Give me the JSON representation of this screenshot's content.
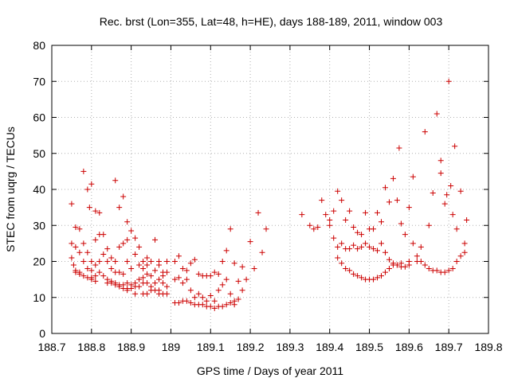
{
  "chart_data": {
    "type": "scatter",
    "title": "Rec. brst (Lon=355, Lat=48, h=HE), days 188-189, 2011, window 003",
    "xlabel": "GPS time / Days of year 2011",
    "ylabel": "STEC from uqrg / TECUs",
    "xlim": [
      188.7,
      189.8
    ],
    "ylim": [
      0,
      80
    ],
    "xticks": [
      188.7,
      188.8,
      188.9,
      189.0,
      189.1,
      189.2,
      189.3,
      189.4,
      189.5,
      189.6,
      189.7,
      189.8
    ],
    "xtick_labels": [
      "188.7",
      "188.8",
      "188.9",
      "189",
      "189.1",
      "189.2",
      "189.3",
      "189.4",
      "189.5",
      "189.6",
      "189.7",
      "189.8"
    ],
    "yticks": [
      0,
      10,
      20,
      30,
      40,
      50,
      60,
      70,
      80
    ],
    "ytick_labels": [
      "0",
      "10",
      "20",
      "30",
      "40",
      "50",
      "60",
      "70",
      "80"
    ],
    "grid": true,
    "marker": "+",
    "color": "#cc0000",
    "series": [
      {
        "name": "STEC",
        "points": [
          [
            188.75,
            36
          ],
          [
            188.76,
            29.5
          ],
          [
            188.77,
            29
          ],
          [
            188.78,
            45
          ],
          [
            188.79,
            40
          ],
          [
            188.795,
            35
          ],
          [
            188.8,
            41.5
          ],
          [
            188.81,
            34
          ],
          [
            188.82,
            33.5
          ],
          [
            188.86,
            42.5
          ],
          [
            188.87,
            35
          ],
          [
            188.88,
            38
          ],
          [
            188.89,
            31
          ],
          [
            188.75,
            25
          ],
          [
            188.76,
            24
          ],
          [
            188.77,
            22.5
          ],
          [
            188.78,
            25
          ],
          [
            188.79,
            22.5
          ],
          [
            188.8,
            20
          ],
          [
            188.81,
            26
          ],
          [
            188.82,
            27.5
          ],
          [
            188.83,
            27.5
          ],
          [
            188.84,
            23.5
          ],
          [
            188.85,
            21
          ],
          [
            188.86,
            20
          ],
          [
            188.87,
            24
          ],
          [
            188.88,
            25
          ],
          [
            188.89,
            26
          ],
          [
            188.9,
            28.5
          ],
          [
            188.91,
            26.5
          ],
          [
            188.92,
            24
          ],
          [
            188.93,
            20
          ],
          [
            188.94,
            21
          ],
          [
            188.95,
            20
          ],
          [
            188.96,
            26
          ],
          [
            188.97,
            20
          ],
          [
            188.98,
            17
          ],
          [
            188.99,
            20
          ],
          [
            188.75,
            21
          ],
          [
            188.755,
            19
          ],
          [
            188.76,
            17.5
          ],
          [
            188.77,
            17
          ],
          [
            188.78,
            20
          ],
          [
            188.79,
            18
          ],
          [
            188.8,
            17.5
          ],
          [
            188.81,
            19
          ],
          [
            188.82,
            20
          ],
          [
            188.83,
            22
          ],
          [
            188.84,
            20
          ],
          [
            188.85,
            18
          ],
          [
            188.86,
            17
          ],
          [
            188.87,
            17
          ],
          [
            188.88,
            16.5
          ],
          [
            188.89,
            20
          ],
          [
            188.9,
            18
          ],
          [
            188.91,
            22
          ],
          [
            188.92,
            19
          ],
          [
            188.93,
            18
          ],
          [
            188.94,
            19
          ],
          [
            188.95,
            16
          ],
          [
            188.96,
            17.5
          ],
          [
            188.97,
            19
          ],
          [
            188.98,
            16
          ],
          [
            188.99,
            17
          ],
          [
            188.76,
            17
          ],
          [
            188.77,
            16.5
          ],
          [
            188.78,
            16
          ],
          [
            188.79,
            15.5
          ],
          [
            188.8,
            15.5
          ],
          [
            188.81,
            16
          ],
          [
            188.82,
            17
          ],
          [
            188.83,
            16
          ],
          [
            188.84,
            15
          ],
          [
            188.85,
            14.5
          ],
          [
            188.86,
            14
          ],
          [
            188.87,
            13.5
          ],
          [
            188.88,
            13.5
          ],
          [
            188.89,
            14
          ],
          [
            188.9,
            13.5
          ],
          [
            188.91,
            14
          ],
          [
            188.92,
            15
          ],
          [
            188.93,
            15.5
          ],
          [
            188.94,
            16.5
          ],
          [
            188.95,
            13
          ],
          [
            188.96,
            14
          ],
          [
            188.97,
            15
          ],
          [
            188.98,
            14
          ],
          [
            188.99,
            13
          ],
          [
            188.8,
            15
          ],
          [
            188.81,
            14.5
          ],
          [
            188.84,
            14
          ],
          [
            188.85,
            14
          ],
          [
            188.86,
            13.5
          ],
          [
            188.87,
            13
          ],
          [
            188.88,
            12.5
          ],
          [
            188.89,
            12.5
          ],
          [
            188.9,
            12.5
          ],
          [
            188.91,
            13
          ],
          [
            188.92,
            13
          ],
          [
            188.93,
            14
          ],
          [
            188.94,
            14
          ],
          [
            188.95,
            12
          ],
          [
            188.96,
            12
          ],
          [
            188.97,
            11
          ],
          [
            188.98,
            11
          ],
          [
            188.99,
            11
          ],
          [
            188.89,
            12
          ],
          [
            188.91,
            11
          ],
          [
            188.93,
            11
          ],
          [
            188.94,
            11
          ],
          [
            188.97,
            12
          ],
          [
            189.01,
            20
          ],
          [
            189.02,
            21.5
          ],
          [
            189.03,
            18
          ],
          [
            189.04,
            17.5
          ],
          [
            189.05,
            19.5
          ],
          [
            189.06,
            20.5
          ],
          [
            189.07,
            16.5
          ],
          [
            189.08,
            16
          ],
          [
            189.09,
            16
          ],
          [
            189.1,
            16
          ],
          [
            189.11,
            17
          ],
          [
            189.12,
            16.5
          ],
          [
            189.13,
            20
          ],
          [
            189.14,
            23
          ],
          [
            189.15,
            29
          ],
          [
            189.16,
            19.5
          ],
          [
            189.17,
            14.5
          ],
          [
            189.18,
            18.5
          ],
          [
            189.19,
            15
          ],
          [
            189.2,
            25.5
          ],
          [
            189.21,
            18
          ],
          [
            189.22,
            33.5
          ],
          [
            189.23,
            22.5
          ],
          [
            189.24,
            29
          ],
          [
            189.01,
            15
          ],
          [
            189.02,
            15.5
          ],
          [
            189.03,
            14
          ],
          [
            189.04,
            15
          ],
          [
            189.05,
            12
          ],
          [
            189.06,
            10
          ],
          [
            189.07,
            11
          ],
          [
            189.08,
            10
          ],
          [
            189.09,
            9
          ],
          [
            189.1,
            10.5
          ],
          [
            189.11,
            9
          ],
          [
            189.12,
            12
          ],
          [
            189.13,
            13.5
          ],
          [
            189.14,
            15
          ],
          [
            189.15,
            11
          ],
          [
            189.16,
            9
          ],
          [
            189.17,
            9.5
          ],
          [
            189.18,
            12
          ],
          [
            189.01,
            8.5
          ],
          [
            189.02,
            8.5
          ],
          [
            189.03,
            9
          ],
          [
            189.04,
            9
          ],
          [
            189.05,
            8.5
          ],
          [
            189.06,
            8
          ],
          [
            189.07,
            8
          ],
          [
            189.08,
            8
          ],
          [
            189.09,
            7.5
          ],
          [
            189.1,
            7.5
          ],
          [
            189.11,
            7
          ],
          [
            189.12,
            7.5
          ],
          [
            189.13,
            7.5
          ],
          [
            189.14,
            8
          ],
          [
            189.15,
            8.5
          ],
          [
            189.16,
            8
          ],
          [
            189.33,
            33
          ],
          [
            189.35,
            30
          ],
          [
            189.36,
            29
          ],
          [
            189.37,
            29.5
          ],
          [
            189.38,
            37
          ],
          [
            189.39,
            33
          ],
          [
            189.4,
            30
          ],
          [
            189.41,
            34
          ],
          [
            189.42,
            39.5
          ],
          [
            189.43,
            37
          ],
          [
            189.44,
            31.5
          ],
          [
            189.45,
            34
          ],
          [
            189.46,
            29.5
          ],
          [
            189.47,
            28
          ],
          [
            189.48,
            27.5
          ],
          [
            189.49,
            33.5
          ],
          [
            189.5,
            29
          ],
          [
            189.51,
            29
          ],
          [
            189.52,
            33.5
          ],
          [
            189.53,
            31
          ],
          [
            189.54,
            40.5
          ],
          [
            189.55,
            36.5
          ],
          [
            189.56,
            43
          ],
          [
            189.57,
            37
          ],
          [
            189.575,
            51.5
          ],
          [
            189.58,
            30.5
          ],
          [
            189.6,
            35
          ],
          [
            189.61,
            43.5
          ],
          [
            189.64,
            56
          ],
          [
            189.65,
            30
          ],
          [
            189.66,
            39
          ],
          [
            189.67,
            61
          ],
          [
            189.68,
            44.5
          ],
          [
            189.68,
            48
          ],
          [
            189.69,
            36
          ],
          [
            189.695,
            38.5
          ],
          [
            189.7,
            70
          ],
          [
            189.705,
            41
          ],
          [
            189.71,
            33
          ],
          [
            189.715,
            52
          ],
          [
            189.72,
            29
          ],
          [
            189.73,
            39.5
          ],
          [
            189.74,
            25
          ],
          [
            189.745,
            31.5
          ],
          [
            189.4,
            31.5
          ],
          [
            189.41,
            26.5
          ],
          [
            189.42,
            24
          ],
          [
            189.43,
            25
          ],
          [
            189.44,
            23.5
          ],
          [
            189.45,
            23.5
          ],
          [
            189.46,
            24.5
          ],
          [
            189.47,
            23.5
          ],
          [
            189.48,
            24
          ],
          [
            189.49,
            25
          ],
          [
            189.5,
            24
          ],
          [
            189.51,
            23.5
          ],
          [
            189.52,
            23
          ],
          [
            189.53,
            25
          ],
          [
            189.54,
            22.5
          ],
          [
            189.55,
            20.5
          ],
          [
            189.56,
            19.5
          ],
          [
            189.57,
            19
          ],
          [
            189.58,
            19.5
          ],
          [
            189.59,
            27.5
          ],
          [
            189.6,
            20
          ],
          [
            189.61,
            25
          ],
          [
            189.62,
            20
          ],
          [
            189.63,
            24
          ],
          [
            189.42,
            21
          ],
          [
            189.43,
            19.5
          ],
          [
            189.44,
            18
          ],
          [
            189.45,
            17.5
          ],
          [
            189.46,
            16.5
          ],
          [
            189.47,
            16
          ],
          [
            189.48,
            15.5
          ],
          [
            189.49,
            15
          ],
          [
            189.5,
            15
          ],
          [
            189.51,
            15
          ],
          [
            189.52,
            15.5
          ],
          [
            189.53,
            16
          ],
          [
            189.54,
            17
          ],
          [
            189.55,
            18
          ],
          [
            189.56,
            19
          ],
          [
            189.57,
            19
          ],
          [
            189.58,
            18.5
          ],
          [
            189.59,
            18.5
          ],
          [
            189.6,
            19
          ],
          [
            189.62,
            21.5
          ],
          [
            189.63,
            20
          ],
          [
            189.64,
            19
          ],
          [
            189.65,
            18
          ],
          [
            189.66,
            17.5
          ],
          [
            189.67,
            17.5
          ],
          [
            189.68,
            17
          ],
          [
            189.69,
            17
          ],
          [
            189.7,
            17.5
          ],
          [
            189.71,
            18
          ],
          [
            189.72,
            20
          ],
          [
            189.73,
            21.5
          ],
          [
            189.74,
            22.5
          ]
        ]
      }
    ]
  }
}
